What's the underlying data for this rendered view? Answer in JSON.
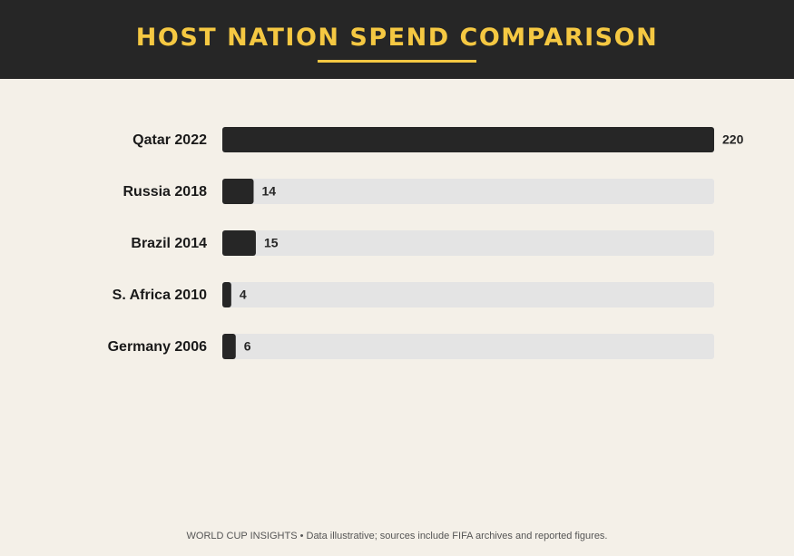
{
  "chart_data": {
    "type": "bar",
    "orientation": "horizontal",
    "title": "HOST NATION SPEND COMPARISON",
    "categories": [
      "Qatar 2022",
      "Russia 2018",
      "Brazil 2014",
      "S. Africa 2010",
      "Germany 2006"
    ],
    "values": [
      220,
      14,
      15,
      4,
      6
    ],
    "color": "#262626",
    "track_color": "#e4e4e4",
    "xlim": [
      0,
      220
    ],
    "footer": "WORLD CUP INSIGHTS • Data illustrative; sources include FIFA archives and reported figures."
  }
}
